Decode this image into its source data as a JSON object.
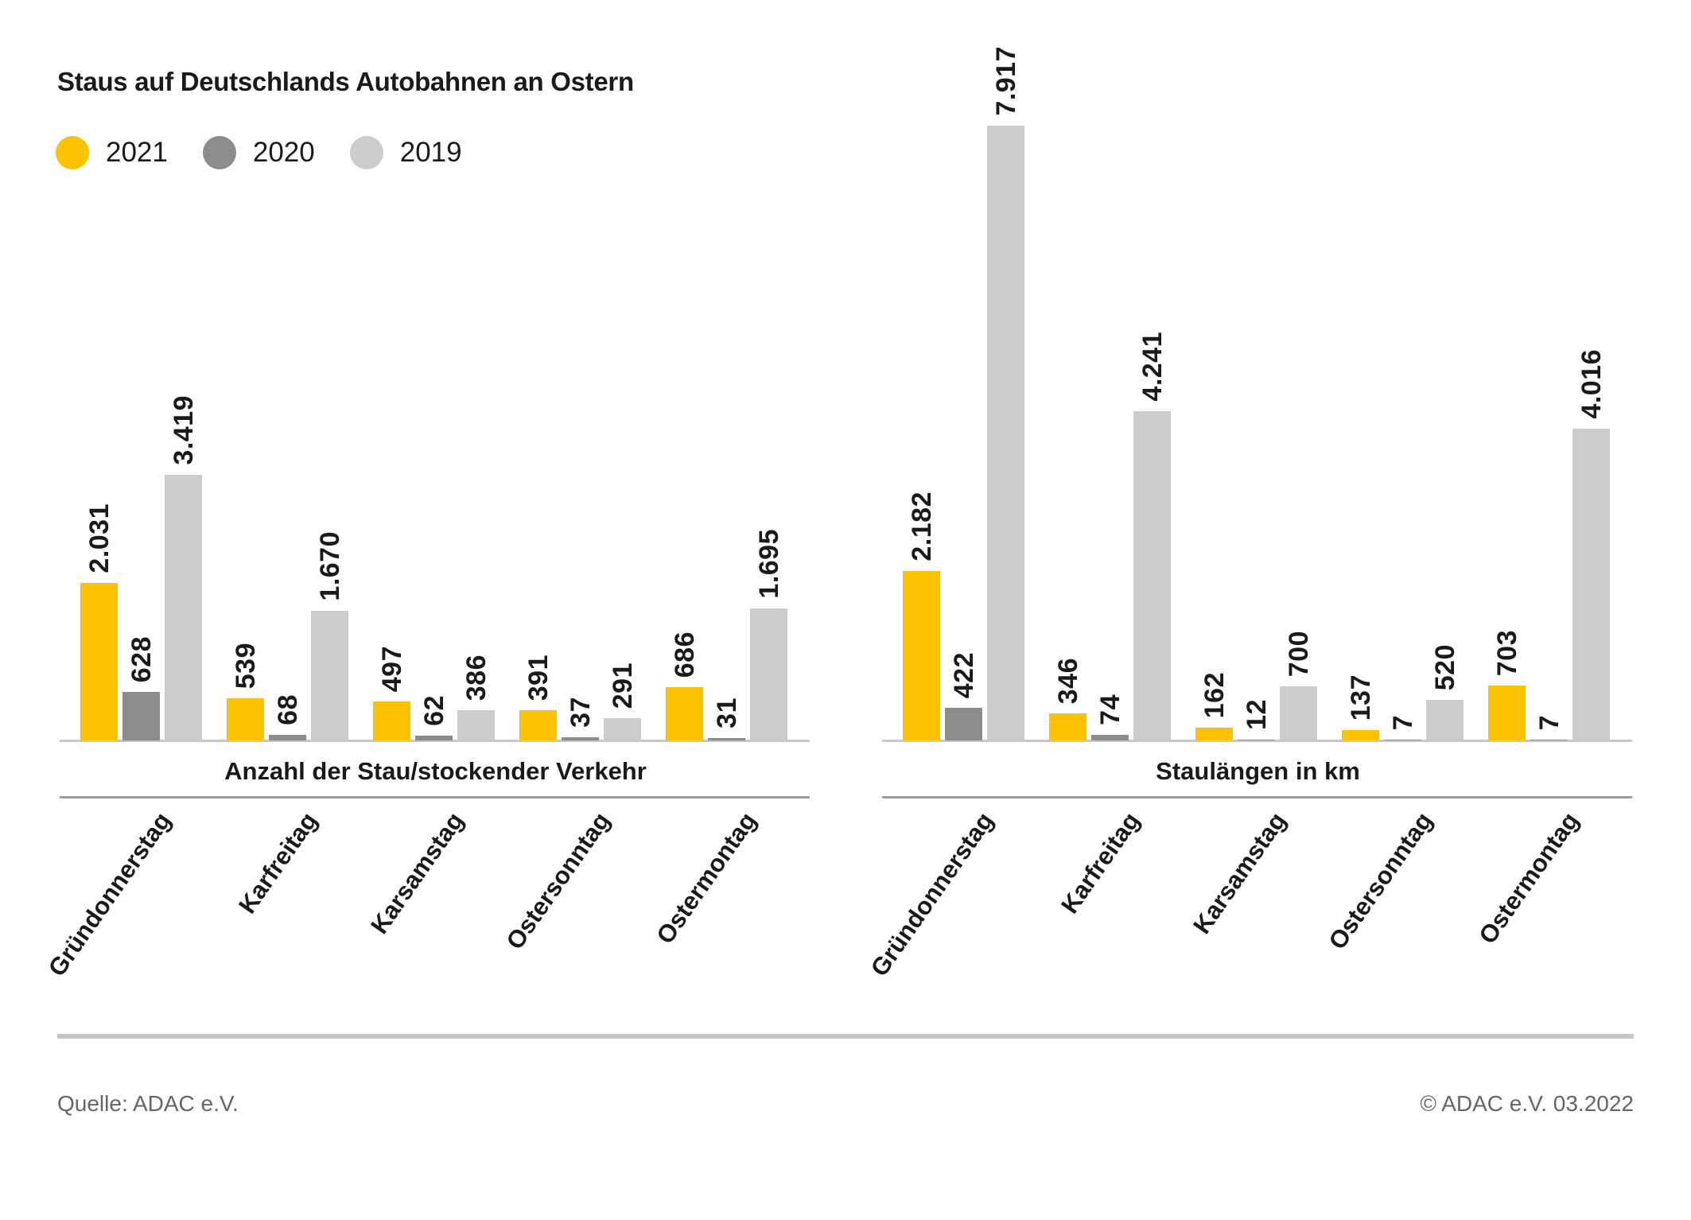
{
  "title": "Staus auf Deutschlands Autobahnen an Ostern",
  "legend": [
    {
      "label": "2021",
      "color": "#FCC200"
    },
    {
      "label": "2020",
      "color": "#8C8C8C"
    },
    {
      "label": "2019",
      "color": "#CCCCCC"
    }
  ],
  "colors": {
    "yellow_2021": "#FCC200",
    "gray_2020": "#8C8C8C",
    "lightgray_2019": "#CCCCCC",
    "axis_line": "#C8C8C8",
    "separator_line": "#9B9B9B",
    "footer_text": "#666666",
    "label_text": "#1A1A1A"
  },
  "chart_data": [
    {
      "type": "bar",
      "title": "Anzahl der Stau/stockender Verkehr",
      "categories": [
        "Gründonnerstag",
        "Karfreitag",
        "Karsamstag",
        "Ostersonntag",
        "Ostermontag"
      ],
      "series": [
        {
          "name": "2021",
          "values": [
            2031,
            539,
            497,
            391,
            686
          ],
          "labels": [
            "2.031",
            "539",
            "497",
            "391",
            "686"
          ]
        },
        {
          "name": "2020",
          "values": [
            628,
            68,
            62,
            37,
            31
          ],
          "labels": [
            "628",
            "68",
            "62",
            "37",
            "31"
          ]
        },
        {
          "name": "2019",
          "values": [
            3419,
            1670,
            386,
            291,
            1695
          ],
          "labels": [
            "3.419",
            "1.670",
            "386",
            "291",
            "1.695"
          ]
        }
      ],
      "ylim": [
        0,
        7917
      ],
      "grid": false,
      "legend_position": "top-left"
    },
    {
      "type": "bar",
      "title": "Staulängen in km",
      "categories": [
        "Gründonnerstag",
        "Karfreitag",
        "Karsamstag",
        "Ostersonntag",
        "Ostermontag"
      ],
      "series": [
        {
          "name": "2021",
          "values": [
            2182,
            346,
            162,
            137,
            703
          ],
          "labels": [
            "2.182",
            "346",
            "162",
            "137",
            "703"
          ]
        },
        {
          "name": "2020",
          "values": [
            422,
            74,
            12,
            7,
            7
          ],
          "labels": [
            "422",
            "74",
            "12",
            "7",
            "7"
          ]
        },
        {
          "name": "2019",
          "values": [
            7917,
            4241,
            700,
            520,
            4016
          ],
          "labels": [
            "7.917",
            "4.241",
            "700",
            "520",
            "4.016"
          ]
        }
      ],
      "ylim": [
        0,
        7917
      ],
      "grid": false,
      "legend_position": "top-left"
    }
  ],
  "footer": {
    "source": "Quelle: ADAC e.V.",
    "copyright": "© ADAC e.V. 03.2022"
  }
}
